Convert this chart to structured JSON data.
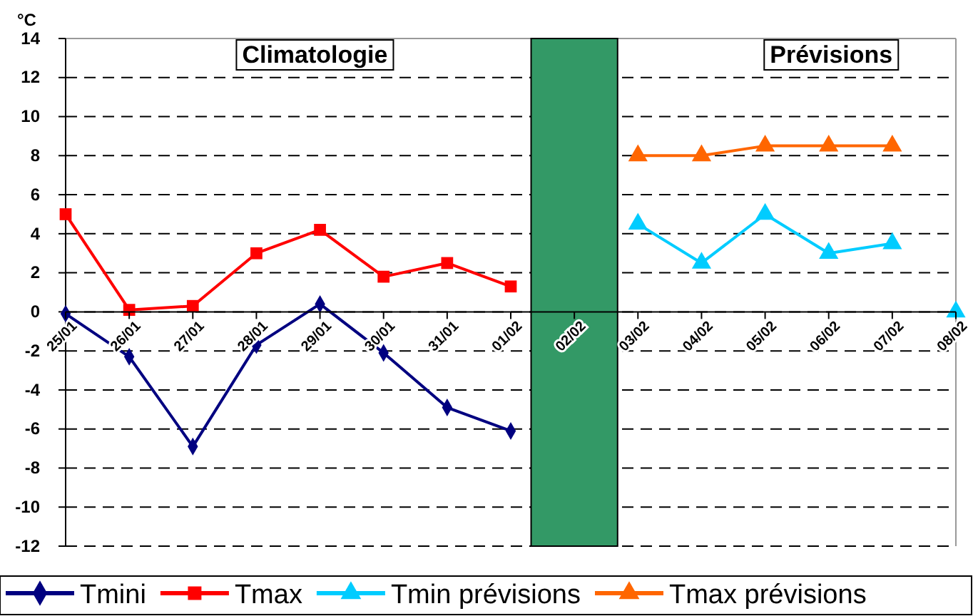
{
  "chart_data": {
    "type": "line",
    "ylabel": "°C",
    "categories": [
      "25/01",
      "26/01",
      "27/01",
      "28/01",
      "29/01",
      "30/01",
      "31/01",
      "01/02",
      "02/02",
      "03/02",
      "04/02",
      "05/02",
      "06/02",
      "07/02",
      "08/02"
    ],
    "series": [
      {
        "name": "Tmini",
        "color": "#000080",
        "marker": "diamond",
        "values": [
          -0.1,
          -2.3,
          -6.9,
          -1.7,
          0.4,
          -2.1,
          -4.9,
          -6.1,
          null,
          null,
          null,
          null,
          null,
          null,
          null
        ]
      },
      {
        "name": "Tmax",
        "color": "#ff0000",
        "marker": "square",
        "values": [
          5,
          0.1,
          0.3,
          3.0,
          4.2,
          1.8,
          2.5,
          1.3,
          null,
          null,
          null,
          null,
          null,
          null,
          null
        ]
      },
      {
        "name": "Tmin prévisions",
        "color": "#00ccff",
        "marker": "triangle",
        "values": [
          null,
          null,
          null,
          null,
          null,
          null,
          null,
          null,
          null,
          4.5,
          2.5,
          5,
          3,
          3.5,
          null
        ]
      },
      {
        "name": "Tmax prévisions",
        "color": "#ff6600",
        "marker": "triangle",
        "values": [
          null,
          null,
          null,
          null,
          null,
          null,
          null,
          null,
          null,
          8,
          8,
          8.5,
          8.5,
          8.5,
          null
        ]
      },
      {
        "type": "scatter",
        "color": "#00ccff",
        "marker": "triangle",
        "values": [
          null,
          null,
          null,
          null,
          null,
          null,
          null,
          null,
          null,
          null,
          null,
          null,
          null,
          null,
          0
        ]
      },
      {
        "type": "bar",
        "color": "#339966",
        "values": [
          null,
          null,
          null,
          null,
          null,
          null,
          null,
          null,
          26,
          null,
          null,
          null,
          null,
          null,
          null
        ],
        "base": [
          null,
          null,
          null,
          null,
          null,
          null,
          null,
          null,
          -12,
          null,
          null,
          null,
          null,
          null,
          null
        ]
      }
    ],
    "ylim": [
      -12,
      14
    ],
    "yticks": [
      -12,
      -10,
      -8,
      -6,
      -4,
      -2,
      0,
      2,
      4,
      6,
      8,
      10,
      12,
      14
    ],
    "grid": "y",
    "legend": "bottom",
    "annotations": [
      "Climatologie",
      "Prévisions"
    ]
  }
}
